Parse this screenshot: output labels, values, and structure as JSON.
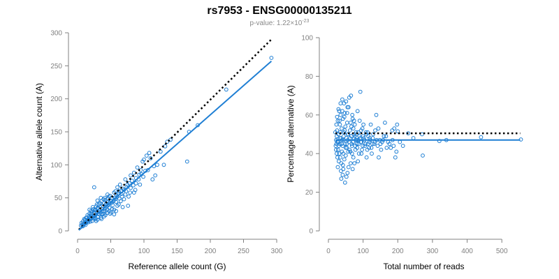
{
  "title": "rs7953 - ENSG00000135211",
  "subtitle": {
    "prefix": "p-value: 1.22×10",
    "exponent": "-23"
  },
  "colors": {
    "points": "#1f7fd4",
    "fit": "#1f7fd4",
    "reference": "#000000",
    "axis": "#808080"
  },
  "chart_data": [
    {
      "type": "scatter",
      "xlabel": "Reference allele count (G)",
      "ylabel": "Alternative allele count (A)",
      "xlim": [
        0,
        300
      ],
      "ylim": [
        0,
        300
      ],
      "xticks": [
        0,
        50,
        100,
        150,
        200,
        250,
        300
      ],
      "yticks": [
        0,
        50,
        100,
        150,
        200,
        250,
        300
      ],
      "fit_line": {
        "x": [
          2,
          292
        ],
        "y": [
          1,
          257
        ]
      },
      "reference_line": {
        "x": [
          2,
          292
        ],
        "y": [
          2,
          290
        ],
        "label": ""
      },
      "points": [
        [
          292,
          262
        ],
        [
          224,
          214
        ],
        [
          181,
          160
        ],
        [
          168,
          150
        ],
        [
          165,
          105
        ],
        [
          140,
          138
        ],
        [
          135,
          135
        ],
        [
          132,
          128
        ],
        [
          120,
          100
        ],
        [
          115,
          98
        ],
        [
          108,
          118
        ],
        [
          104,
          114
        ],
        [
          100,
          108
        ],
        [
          98,
          105
        ],
        [
          95,
          92
        ],
        [
          93,
          85
        ],
        [
          90,
          96
        ],
        [
          88,
          80
        ],
        [
          85,
          88
        ],
        [
          82,
          76
        ],
        [
          80,
          84
        ],
        [
          78,
          72
        ],
        [
          75,
          70
        ],
        [
          72,
          78
        ],
        [
          70,
          62
        ],
        [
          68,
          64
        ],
        [
          66,
          56
        ],
        [
          64,
          70
        ],
        [
          62,
          60
        ],
        [
          60,
          52
        ],
        [
          58,
          55
        ],
        [
          57,
          48
        ],
        [
          55,
          58
        ],
        [
          54,
          45
        ],
        [
          52,
          50
        ],
        [
          50,
          46
        ],
        [
          49,
          53
        ],
        [
          48,
          42
        ],
        [
          47,
          40
        ],
        [
          46,
          49
        ],
        [
          45,
          38
        ],
        [
          44,
          44
        ],
        [
          43,
          36
        ],
        [
          42,
          47
        ],
        [
          41,
          34
        ],
        [
          40,
          42
        ],
        [
          39,
          30
        ],
        [
          38,
          38
        ],
        [
          37,
          33
        ],
        [
          36,
          45
        ],
        [
          35,
          28
        ],
        [
          34,
          36
        ],
        [
          33,
          31
        ],
        [
          32,
          40
        ],
        [
          31,
          26
        ],
        [
          30,
          34
        ],
        [
          29,
          29
        ],
        [
          28,
          37
        ],
        [
          27,
          24
        ],
        [
          26,
          31
        ],
        [
          25,
          27
        ],
        [
          24,
          33
        ],
        [
          23,
          22
        ],
        [
          22,
          29
        ],
        [
          21,
          25
        ],
        [
          20,
          30
        ],
        [
          19,
          20
        ],
        [
          18,
          26
        ],
        [
          17,
          22
        ],
        [
          16,
          18
        ],
        [
          15,
          24
        ],
        [
          14,
          15
        ],
        [
          13,
          20
        ],
        [
          12,
          16
        ],
        [
          11,
          13
        ],
        [
          10,
          18
        ],
        [
          9,
          11
        ],
        [
          8,
          14
        ],
        [
          7,
          9
        ],
        [
          6,
          12
        ],
        [
          5,
          8
        ],
        [
          25,
          66
        ],
        [
          45,
          32
        ],
        [
          62,
          40
        ],
        [
          55,
          32
        ],
        [
          70,
          48
        ],
        [
          77,
          52
        ],
        [
          85,
          58
        ],
        [
          40,
          22
        ],
        [
          30,
          17
        ],
        [
          35,
          20
        ],
        [
          50,
          28
        ],
        [
          28,
          15
        ],
        [
          33,
          25
        ],
        [
          48,
          35
        ],
        [
          58,
          44
        ],
        [
          65,
          45
        ],
        [
          38,
          25
        ],
        [
          42,
          30
        ],
        [
          53,
          39
        ],
        [
          60,
          38
        ],
        [
          36,
          18
        ],
        [
          27,
          18
        ],
        [
          22,
          15
        ],
        [
          19,
          14
        ],
        [
          24,
          19
        ],
        [
          31,
          21
        ],
        [
          44,
          27
        ],
        [
          52,
          33
        ],
        [
          67,
          52
        ],
        [
          73,
          60
        ],
        [
          80,
          65
        ],
        [
          88,
          72
        ],
        [
          96,
          86
        ],
        [
          110,
          110
        ],
        [
          117,
          84
        ],
        [
          125,
          120
        ],
        [
          106,
          92
        ],
        [
          60,
          66
        ],
        [
          57,
          60
        ],
        [
          47,
          52
        ],
        [
          41,
          50
        ],
        [
          35,
          50
        ],
        [
          29,
          40
        ],
        [
          26,
          20
        ],
        [
          20,
          18
        ],
        [
          16,
          13
        ],
        [
          12,
          9
        ],
        [
          14,
          20
        ],
        [
          18,
          32
        ],
        [
          23,
          36
        ],
        [
          30,
          46
        ],
        [
          39,
          48
        ],
        [
          45,
          55
        ],
        [
          52,
          43
        ],
        [
          63,
          49
        ],
        [
          72,
          55
        ],
        [
          84,
          69
        ],
        [
          92,
          78
        ],
        [
          102,
          91
        ],
        [
          113,
          78
        ],
        [
          130,
          100
        ],
        [
          76,
          38
        ],
        [
          68,
          36
        ],
        [
          58,
          30
        ],
        [
          49,
          26
        ],
        [
          42,
          24
        ],
        [
          37,
          30
        ],
        [
          32,
          29
        ],
        [
          27,
          32
        ],
        [
          21,
          22
        ],
        [
          17,
          17
        ],
        [
          13,
          12
        ],
        [
          10,
          10
        ],
        [
          8,
          7
        ],
        [
          34,
          42
        ],
        [
          43,
          41
        ],
        [
          51,
          45
        ],
        [
          56,
          50
        ],
        [
          61,
          57
        ],
        [
          66,
          61
        ],
        [
          74,
          66
        ],
        [
          79,
          58
        ],
        [
          87,
          62
        ],
        [
          94,
          70
        ],
        [
          99,
          82
        ],
        [
          55,
          25
        ],
        [
          48,
          30
        ],
        [
          36,
          26
        ],
        [
          31,
          35
        ],
        [
          25,
          22
        ],
        [
          21,
          27
        ],
        [
          15,
          16
        ],
        [
          11,
          17
        ]
      ]
    },
    {
      "type": "scatter",
      "xlabel": "Total number of reads",
      "ylabel": "Percentage alternative (A)",
      "xlim": [
        0,
        550
      ],
      "ylim": [
        0,
        100
      ],
      "xticks": [
        0,
        100,
        200,
        300,
        400,
        500
      ],
      "yticks": [
        0,
        20,
        40,
        60,
        80,
        100
      ],
      "fit_line": {
        "x": [
          20,
          553
        ],
        "y": [
          47,
          47
        ]
      },
      "reference_line": {
        "x": [
          20,
          553
        ],
        "y": [
          50.5,
          50.5
        ],
        "label": ""
      },
      "points": [
        [
          555,
          47.3
        ],
        [
          440,
          48.5
        ],
        [
          340,
          47
        ],
        [
          320,
          46.5
        ],
        [
          272,
          39
        ],
        [
          270,
          50
        ],
        [
          245,
          48
        ],
        [
          230,
          50.5
        ],
        [
          200,
          51.5
        ],
        [
          198,
          55
        ],
        [
          196,
          41
        ],
        [
          193,
          38
        ],
        [
          190,
          53
        ],
        [
          188,
          44
        ],
        [
          185,
          47
        ],
        [
          180,
          43
        ],
        [
          172,
          46
        ],
        [
          168,
          43
        ],
        [
          163,
          56
        ],
        [
          160,
          49
        ],
        [
          155,
          46
        ],
        [
          152,
          42
        ],
        [
          148,
          47
        ],
        [
          145,
          38
        ],
        [
          142,
          44
        ],
        [
          138,
          60
        ],
        [
          135,
          52
        ],
        [
          132,
          45
        ],
        [
          128,
          48
        ],
        [
          125,
          40
        ],
        [
          122,
          55
        ],
        [
          118,
          46
        ],
        [
          115,
          49
        ],
        [
          112,
          42
        ],
        [
          108,
          51
        ],
        [
          105,
          44
        ],
        [
          102,
          48
        ],
        [
          98,
          53
        ],
        [
          95,
          46
        ],
        [
          92,
          72
        ],
        [
          90,
          57
        ],
        [
          88,
          40
        ],
        [
          86,
          47
        ],
        [
          84,
          62
        ],
        [
          82,
          45
        ],
        [
          80,
          51
        ],
        [
          78,
          42
        ],
        [
          76,
          55
        ],
        [
          74,
          48
        ],
        [
          72,
          38
        ],
        [
          70,
          58
        ],
        [
          68,
          44
        ],
        [
          66,
          49
        ],
        [
          64,
          35
        ],
        [
          62,
          52
        ],
        [
          60,
          46
        ],
        [
          58,
          64
        ],
        [
          57,
          41
        ],
        [
          56,
          50
        ],
        [
          55,
          30
        ],
        [
          54,
          56
        ],
        [
          53,
          43
        ],
        [
          52,
          48
        ],
        [
          51,
          67
        ],
        [
          50,
          39
        ],
        [
          49,
          54
        ],
        [
          48,
          45
        ],
        [
          47,
          61
        ],
        [
          46,
          37
        ],
        [
          45,
          51
        ],
        [
          44,
          47
        ],
        [
          43,
          32
        ],
        [
          42,
          58
        ],
        [
          41,
          44
        ],
        [
          40,
          62
        ],
        [
          39,
          41
        ],
        [
          38,
          53
        ],
        [
          37,
          27
        ],
        [
          36,
          48
        ],
        [
          35,
          60
        ],
        [
          34,
          38
        ],
        [
          33,
          55
        ],
        [
          32,
          45
        ],
        [
          31,
          62
        ],
        [
          30,
          36
        ],
        [
          29,
          50
        ],
        [
          28,
          42
        ],
        [
          27,
          57
        ],
        [
          26,
          46
        ],
        [
          25,
          52
        ],
        [
          24,
          40
        ],
        [
          23,
          55
        ],
        [
          22,
          47
        ],
        [
          21,
          44
        ],
        [
          20,
          51
        ],
        [
          60,
          69
        ],
        [
          65,
          70
        ],
        [
          45,
          66
        ],
        [
          55,
          64
        ],
        [
          70,
          32
        ],
        [
          48,
          25
        ],
        [
          52,
          28
        ],
        [
          36,
          31
        ],
        [
          42,
          34
        ],
        [
          75,
          35
        ],
        [
          85,
          36
        ],
        [
          95,
          40
        ],
        [
          110,
          38
        ],
        [
          58,
          33
        ],
        [
          63,
          41
        ],
        [
          67,
          45
        ],
        [
          73,
          50
        ],
        [
          79,
          47
        ],
        [
          83,
          43
        ],
        [
          89,
          49
        ],
        [
          94,
          52
        ],
        [
          99,
          44
        ],
        [
          104,
          47
        ],
        [
          109,
          50
        ],
        [
          114,
          45
        ],
        [
          119,
          48
        ],
        [
          124,
          43
        ],
        [
          129,
          50
        ],
        [
          134,
          46
        ],
        [
          139,
          47
        ],
        [
          144,
          53
        ],
        [
          150,
          45
        ],
        [
          158,
          47
        ],
        [
          166,
          49
        ],
        [
          176,
          45
        ],
        [
          184,
          52
        ],
        [
          206,
          46
        ],
        [
          215,
          44
        ],
        [
          38,
          45
        ],
        [
          44,
          49
        ],
        [
          50,
          43
        ],
        [
          56,
          47
        ],
        [
          61,
          42
        ],
        [
          66,
          54
        ],
        [
          71,
          46
        ],
        [
          77,
          44
        ],
        [
          81,
          50
        ],
        [
          87,
          45
        ],
        [
          91,
          48
        ],
        [
          97,
          42
        ],
        [
          101,
          55
        ],
        [
          107,
          45
        ],
        [
          113,
          51
        ],
        [
          117,
          43
        ],
        [
          121,
          47
        ],
        [
          127,
          45
        ],
        [
          33,
          48
        ],
        [
          28,
          46
        ],
        [
          24,
          49
        ],
        [
          22,
          42
        ],
        [
          26,
          38
        ],
        [
          30,
          44
        ],
        [
          34,
          51
        ],
        [
          39,
          47
        ],
        [
          43,
          40
        ],
        [
          47,
          52
        ],
        [
          53,
          45
        ],
        [
          57,
          50
        ],
        [
          62,
          48
        ],
        [
          68,
          40
        ],
        [
          72,
          53
        ],
        [
          76,
          49
        ],
        [
          82,
          47
        ],
        [
          86,
          51
        ],
        [
          93,
          46
        ],
        [
          100,
          49
        ],
        [
          35,
          66
        ],
        [
          40,
          68
        ],
        [
          29,
          63
        ],
        [
          25,
          59
        ],
        [
          32,
          57
        ],
        [
          46,
          59
        ],
        [
          54,
          61
        ],
        [
          64,
          56
        ],
        [
          69,
          60
        ],
        [
          74,
          57
        ],
        [
          41,
          29
        ],
        [
          37,
          35
        ],
        [
          31,
          40
        ],
        [
          27,
          33
        ],
        [
          23,
          45
        ]
      ]
    }
  ]
}
